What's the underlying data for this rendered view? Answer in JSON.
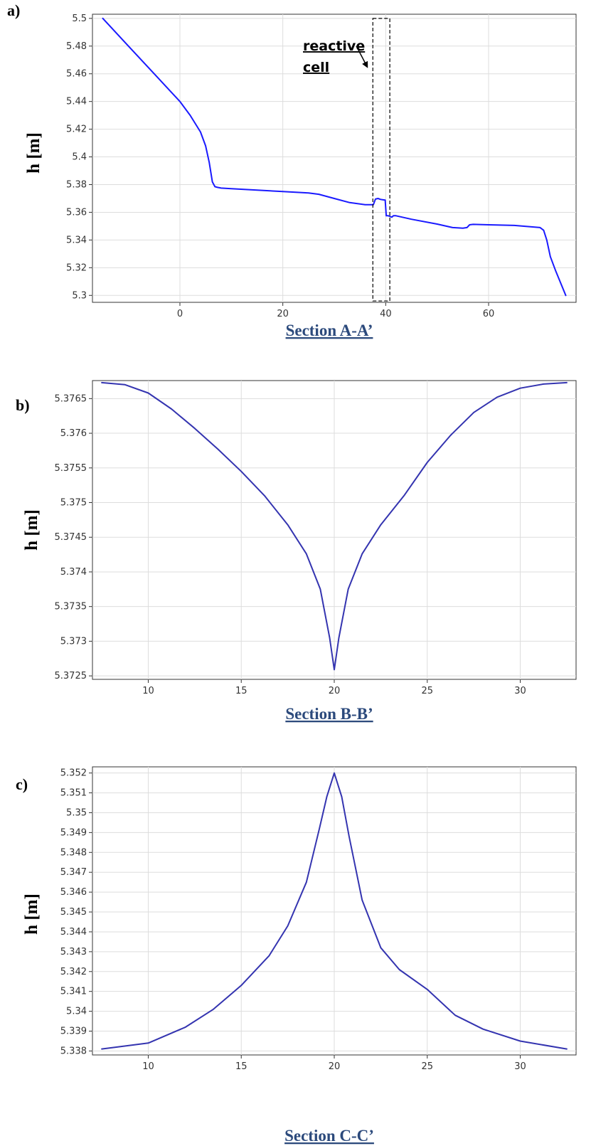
{
  "chart_data": [
    {
      "type": "line",
      "panel_label": "a)",
      "title": "Section A-A’",
      "ylabel": "h [m]",
      "xlim": [
        -17,
        77
      ],
      "ylim": [
        5.295,
        5.503
      ],
      "xticks": [
        0,
        20,
        40,
        60
      ],
      "xtick_labels": [
        "0",
        "20",
        "40",
        "60"
      ],
      "yticks": [
        5.3,
        5.32,
        5.34,
        5.36,
        5.38,
        5.4,
        5.42,
        5.44,
        5.46,
        5.48,
        5.5
      ],
      "ytick_labels": [
        "5.3",
        "5.32",
        "5.34",
        "5.36",
        "5.38",
        "5.4",
        "5.42",
        "5.44",
        "5.46",
        "5.48",
        "5.5"
      ],
      "grid": true,
      "line_color": "#1a1aff",
      "series": [
        {
          "x": [
            -15,
            -10,
            -5,
            0,
            2,
            4,
            5,
            5.7,
            6.3,
            6.8,
            7.3,
            8,
            10,
            15,
            20,
            25,
            27,
            30,
            33,
            36,
            37.6,
            38,
            38.5,
            39,
            39.5,
            39.9,
            40.1,
            40.5,
            41.2,
            41.5,
            42,
            45,
            50,
            53,
            55,
            55.8,
            56.3,
            57,
            60,
            65,
            70,
            70.7,
            71.3,
            72,
            73,
            74,
            75
          ],
          "y": [
            5.5,
            5.48,
            5.46,
            5.44,
            5.43,
            5.418,
            5.408,
            5.396,
            5.382,
            5.3785,
            5.378,
            5.3775,
            5.377,
            5.376,
            5.375,
            5.374,
            5.373,
            5.37,
            5.367,
            5.3655,
            5.3655,
            5.3695,
            5.37,
            5.3693,
            5.369,
            5.3688,
            5.3575,
            5.3575,
            5.3565,
            5.3575,
            5.3575,
            5.355,
            5.3515,
            5.349,
            5.3485,
            5.349,
            5.351,
            5.3513,
            5.351,
            5.3505,
            5.349,
            5.347,
            5.34,
            5.328,
            5.318,
            5.309,
            5.3
          ]
        }
      ],
      "highlight_box": {
        "x": [
          37.5,
          40.8
        ],
        "y": [
          5.296,
          5.5
        ]
      },
      "annotation": {
        "line1": "reactive",
        "line2": "cell",
        "arrow_from": [
          34.3,
          5.48
        ],
        "arrow_to": [
          36.4,
          5.465
        ]
      }
    },
    {
      "type": "line",
      "panel_label": "b)",
      "title": "Section B-B’",
      "ylabel": "h [m]",
      "xlim": [
        7,
        33
      ],
      "ylim": [
        5.37245,
        5.37676
      ],
      "xticks": [
        10,
        15,
        20,
        25,
        30
      ],
      "xtick_labels": [
        "10",
        "15",
        "20",
        "25",
        "30"
      ],
      "yticks": [
        5.3725,
        5.373,
        5.3735,
        5.374,
        5.3745,
        5.375,
        5.3755,
        5.376,
        5.3765
      ],
      "ytick_labels": [
        "5.3725",
        "5.373",
        "5.3735",
        "5.374",
        "5.3745",
        "5.375",
        "5.3755",
        "5.376",
        "5.3765"
      ],
      "grid": true,
      "line_color": "#3434b0",
      "series": [
        {
          "x": [
            7.5,
            8.75,
            10,
            11.25,
            12.5,
            13.75,
            15,
            16.25,
            17.5,
            18.5,
            19.25,
            19.75,
            20,
            20.25,
            20.75,
            21.5,
            22.5,
            23.75,
            25,
            26.25,
            27.5,
            28.75,
            30,
            31.25,
            32.5
          ],
          "y": [
            5.37673,
            5.3767,
            5.37658,
            5.37635,
            5.37607,
            5.37577,
            5.37545,
            5.3751,
            5.37468,
            5.37426,
            5.37375,
            5.37305,
            5.37259,
            5.37305,
            5.37375,
            5.37426,
            5.37468,
            5.3751,
            5.37558,
            5.37597,
            5.3763,
            5.37652,
            5.37665,
            5.37671,
            5.37673
          ]
        }
      ]
    },
    {
      "type": "line",
      "panel_label": "c)",
      "title": "Section C-C’",
      "ylabel": "h [m]",
      "xlim": [
        7,
        33
      ],
      "ylim": [
        5.3378,
        5.35231
      ],
      "xticks": [
        10,
        15,
        20,
        25,
        30
      ],
      "xtick_labels": [
        "10",
        "15",
        "20",
        "25",
        "30"
      ],
      "yticks": [
        5.338,
        5.339,
        5.34,
        5.341,
        5.342,
        5.343,
        5.344,
        5.345,
        5.346,
        5.347,
        5.348,
        5.349,
        5.35,
        5.351,
        5.352
      ],
      "ytick_labels": [
        "5.338",
        "5.339",
        "5.34",
        "5.341",
        "5.342",
        "5.343",
        "5.344",
        "5.345",
        "5.346",
        "5.347",
        "5.348",
        "5.349",
        "5.35",
        "5.351",
        "5.352"
      ],
      "grid": true,
      "line_color": "#3434b0",
      "series": [
        {
          "x": [
            7.5,
            10,
            12,
            13.5,
            15,
            16.5,
            17.5,
            18.5,
            19.2,
            19.6,
            20,
            20.4,
            20.8,
            21.5,
            22.5,
            23.5,
            25,
            26.5,
            28,
            30,
            32.5
          ],
          "y": [
            5.3381,
            5.3384,
            5.3392,
            5.3401,
            5.3413,
            5.3428,
            5.3443,
            5.3465,
            5.3492,
            5.3508,
            5.352,
            5.3508,
            5.3488,
            5.3456,
            5.3432,
            5.3421,
            5.3411,
            5.3398,
            5.3391,
            5.3385,
            5.3381
          ]
        }
      ]
    }
  ]
}
